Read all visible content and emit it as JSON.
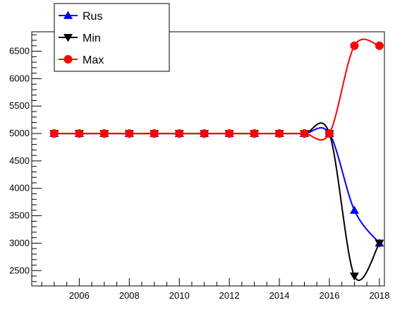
{
  "chart_data": {
    "type": "line",
    "x": [
      2005,
      2006,
      2007,
      2008,
      2009,
      2010,
      2011,
      2012,
      2013,
      2014,
      2015,
      2016,
      2017,
      2018
    ],
    "series": [
      {
        "name": "Rus",
        "color": "#0000ff",
        "marker": "triangle-up",
        "values": [
          5000,
          5000,
          5000,
          5000,
          5000,
          5000,
          5000,
          5000,
          5000,
          5000,
          5000,
          5000,
          3600,
          3000
        ]
      },
      {
        "name": "Min",
        "color": "#000000",
        "marker": "triangle-down",
        "values": [
          5000,
          5000,
          5000,
          5000,
          5000,
          5000,
          5000,
          5000,
          5000,
          5000,
          5000,
          5000,
          2400,
          3000
        ]
      },
      {
        "name": "Max",
        "color": "#ff0000",
        "marker": "circle",
        "values": [
          5000,
          5000,
          5000,
          5000,
          5000,
          5000,
          5000,
          5000,
          5000,
          5000,
          5000,
          5000,
          6600,
          6600
        ]
      }
    ],
    "xlim": [
      2004.1,
      2018.2
    ],
    "ylim": [
      2220,
      6855
    ],
    "x_ticks": [
      2006,
      2008,
      2010,
      2012,
      2014,
      2016,
      2018
    ],
    "y_ticks": [
      2500,
      3000,
      3500,
      4000,
      4500,
      5000,
      5500,
      6000,
      6500
    ],
    "grid": false,
    "legend_position": "top-left",
    "curve": "smooth"
  }
}
